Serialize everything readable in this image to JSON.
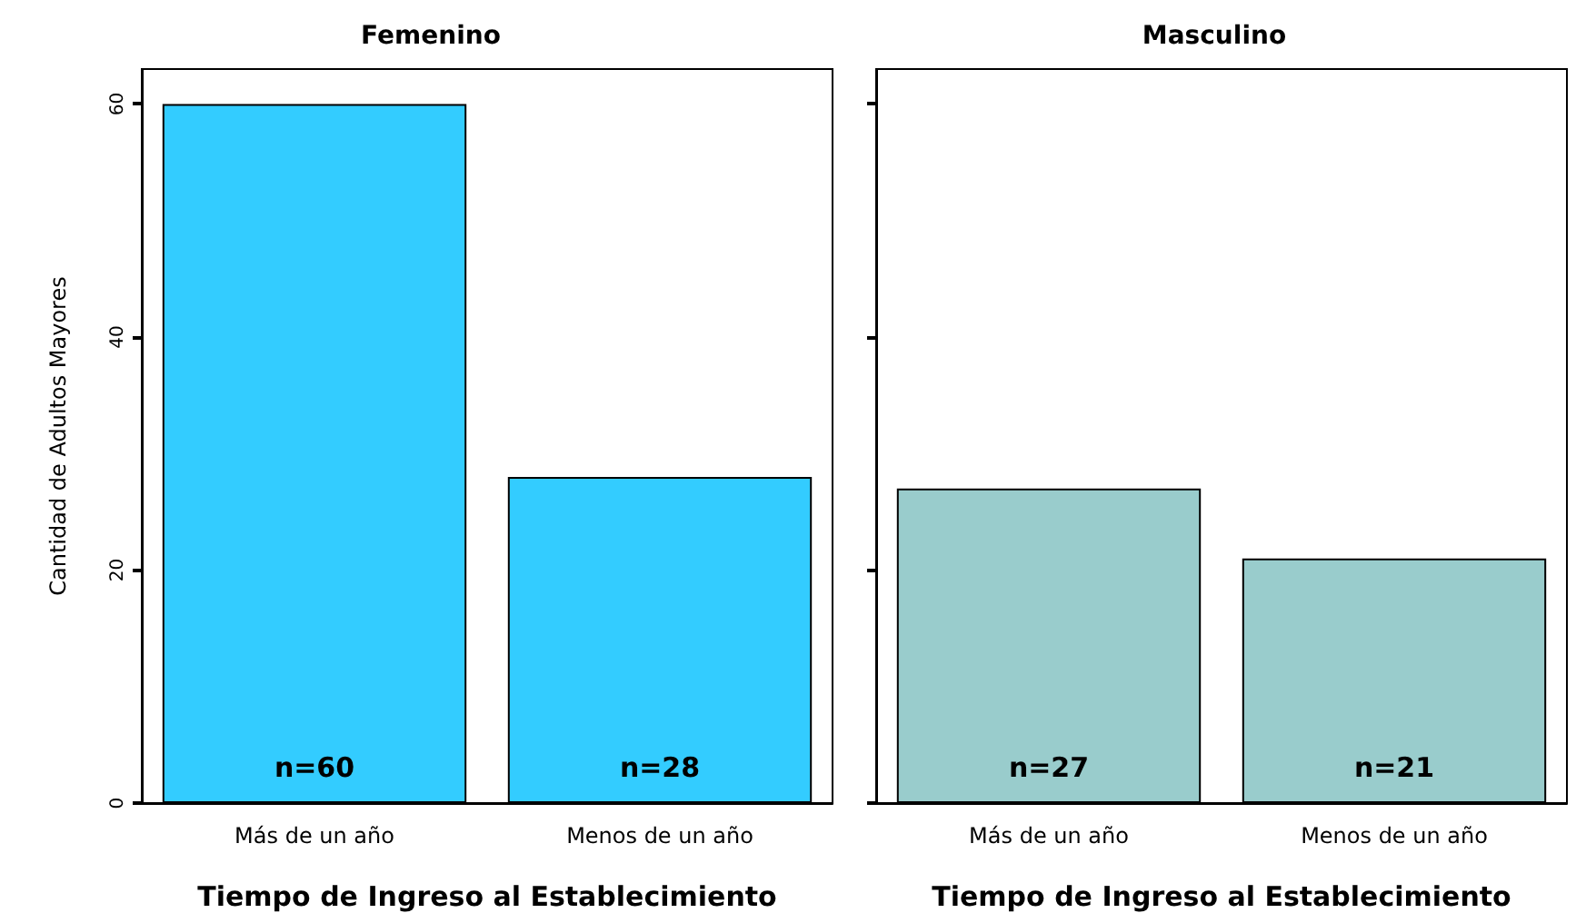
{
  "chart_data": [
    {
      "type": "bar",
      "title": "Femenino",
      "xlabel": "Tiempo de Ingreso al Establecimiento",
      "ylabel": "Cantidad de Adultos Mayores",
      "categories": [
        "Más de un año",
        "Menos de un año"
      ],
      "values": [
        60,
        28
      ],
      "value_labels": [
        "n=60",
        "n=28"
      ],
      "color": "#33ccff",
      "ylim": [
        0,
        63
      ],
      "yticks": [
        0,
        20,
        40,
        60
      ]
    },
    {
      "type": "bar",
      "title": "Masculino",
      "xlabel": "Tiempo de Ingreso al Establecimiento",
      "categories": [
        "Más de un año",
        "Menos de un año"
      ],
      "values": [
        27,
        21
      ],
      "value_labels": [
        "n=27",
        "n=21"
      ],
      "color": "#99cccc",
      "ylim": [
        0,
        63
      ],
      "yticks": [
        0,
        20,
        40,
        60
      ],
      "tick_labels": "x"
    }
  ]
}
